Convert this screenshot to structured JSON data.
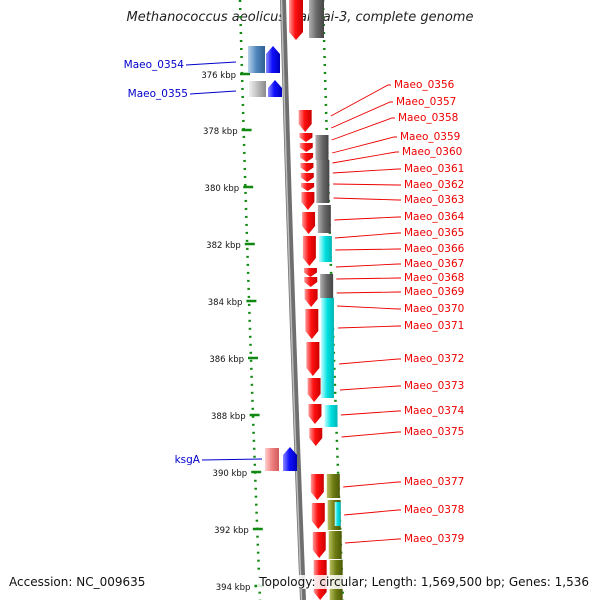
{
  "title": "Methanococcus aeolicus Nankai-3, complete genome",
  "footer": {
    "accession": "Accession: NC_009635",
    "summary": "Topology: circular; Length: 1,569,500 bp; Genes: 1,536"
  },
  "axis_ticks": [
    "376 kbp",
    "378 kbp",
    "380 kbp",
    "382 kbp",
    "384 kbp",
    "386 kbp",
    "388 kbp",
    "390 kbp",
    "392 kbp",
    "394 kbp"
  ],
  "colors": {
    "forward_gene": "#0000ee",
    "reverse_gene": "#ee0000",
    "cds_grey": "#666666",
    "cds_cyan": "#00dddd",
    "cds_olive": "#6b7a10",
    "tick_green": "#118811",
    "backbone": "#888888"
  },
  "left_labels": [
    {
      "text": "Maeo_0354",
      "color": "#0000cc"
    },
    {
      "text": "Maeo_0355",
      "color": "#0000cc"
    },
    {
      "text": "ksgA",
      "color": "#0000cc"
    }
  ],
  "right_labels": [
    "Maeo_0356",
    "Maeo_0357",
    "Maeo_0358",
    "Maeo_0359",
    "Maeo_0360",
    "Maeo_0361",
    "Maeo_0362",
    "Maeo_0363",
    "Maeo_0364",
    "Maeo_0365",
    "Maeo_0366",
    "Maeo_0367",
    "Maeo_0368",
    "Maeo_0369",
    "Maeo_0370",
    "Maeo_0371",
    "Maeo_0372",
    "Maeo_0373",
    "Maeo_0374",
    "Maeo_0375",
    "Maeo_0377",
    "Maeo_0378",
    "Maeo_0379"
  ]
}
